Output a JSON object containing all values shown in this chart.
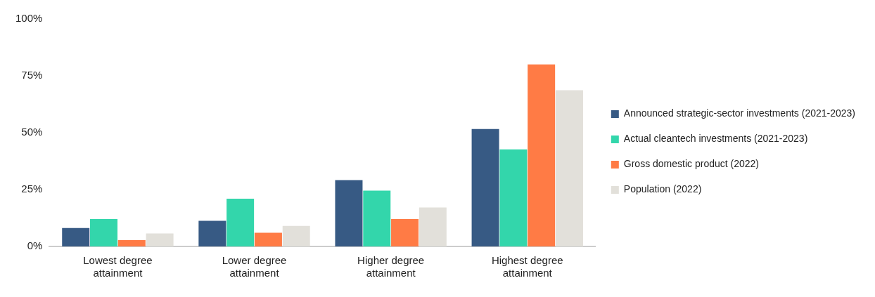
{
  "chart_data": {
    "type": "bar",
    "categories": [
      "Lowest degree attainment",
      "Lower degree attainment",
      "Higher degree attainment",
      "Highest degree attainment"
    ],
    "series": [
      {
        "name": "Announced strategic-sector investments (2021-2023)",
        "color": "#375a84",
        "values": [
          8.1,
          11.3,
          29.2,
          51.6
        ]
      },
      {
        "name": "Actual cleantech investments (2021-2023)",
        "color": "#33d6ab",
        "values": [
          12,
          21,
          24.5,
          42.7
        ]
      },
      {
        "name": "Gross domestic product (2022)",
        "color": "#ff7b45",
        "values": [
          2.8,
          6,
          12,
          80
        ]
      },
      {
        "name": "Population (2022)",
        "color": "#e2e0da",
        "values": [
          5.7,
          9,
          17.1,
          68.7
        ]
      }
    ],
    "ylim": [
      0,
      100
    ],
    "yticks": [
      {
        "value": 0,
        "label": "0%"
      },
      {
        "value": 25,
        "label": "25%"
      },
      {
        "value": 50,
        "label": "50%"
      },
      {
        "value": 75,
        "label": "75%"
      },
      {
        "value": 100,
        "label": "100%"
      }
    ],
    "grid": false,
    "legend": "right"
  }
}
